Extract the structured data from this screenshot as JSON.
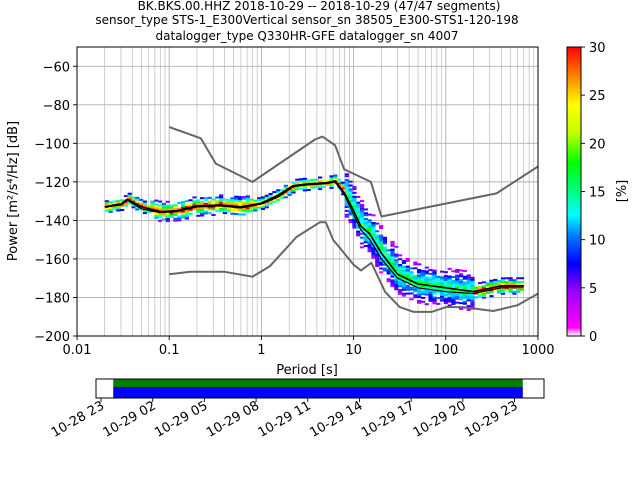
{
  "chart_data": {
    "type": "heatmap",
    "title_lines": [
      "BK.BKS.00.HHZ   2018-10-29 -- 2018-10-29  (47/47 segments)",
      "sensor_type STS-1_E300Vertical sensor_sn 38505_E300-STS1-120-198",
      "datalogger_type Q330HR-GFE datalogger_sn 4007"
    ],
    "xlabel": "Period [s]",
    "ylabel": "Power [m²/s⁴/Hz] [dB]",
    "xscale": "log",
    "xlim": [
      0.01,
      1000
    ],
    "ylim": [
      -200,
      -50
    ],
    "xticks": [
      0.01,
      0.1,
      1,
      10,
      100,
      1000
    ],
    "xtick_labels": [
      "0.01",
      "0.1",
      "1",
      "10",
      "100",
      "1000"
    ],
    "yticks": [
      -60,
      -80,
      -100,
      -120,
      -140,
      -160,
      -180,
      -200
    ],
    "ytick_labels": [
      "−60",
      "−80",
      "−100",
      "−120",
      "−140",
      "−160",
      "−180",
      "−200"
    ],
    "grid": true,
    "colorbar": {
      "label": "[%]",
      "range": [
        0,
        30
      ],
      "ticks": [
        0,
        5,
        10,
        15,
        20,
        25,
        30
      ],
      "tick_labels": [
        "0",
        "5",
        "10",
        "15",
        "20",
        "25",
        "30"
      ]
    },
    "series": [
      {
        "name": "high noise model",
        "color": "#666666",
        "x": [
          0.1,
          0.22,
          0.32,
          0.8,
          3.8,
          4.6,
          6.3,
          7.9,
          15.4,
          20,
          354.8,
          1000
        ],
        "y": [
          -91.5,
          -97.4,
          -110.5,
          -120,
          -98,
          -96.5,
          -101,
          -113.5,
          -120,
          -138,
          -126,
          -112
        ]
      },
      {
        "name": "low noise model",
        "color": "#666666",
        "x": [
          0.1,
          0.17,
          0.4,
          0.8,
          1.24,
          2.4,
          4.3,
          5,
          6,
          10,
          12,
          15.6,
          21.9,
          31.6,
          45,
          70,
          101,
          154,
          328,
          600,
          1000
        ],
        "y": [
          -168,
          -166.7,
          -166.7,
          -169.2,
          -163.7,
          -148.6,
          -141,
          -141,
          -150,
          -163,
          -166,
          -162,
          -177,
          -185,
          -187.5,
          -187.5,
          -185,
          -185,
          -187,
          -184,
          -178
        ]
      },
      {
        "name": "mean PSD",
        "color": "#000000",
        "x": [
          0.02,
          0.025,
          0.03,
          0.035,
          0.05,
          0.08,
          0.12,
          0.2,
          0.35,
          0.6,
          1,
          1.5,
          2.2,
          3.3,
          5,
          6.3,
          8,
          10,
          12,
          15,
          20,
          30,
          50,
          100,
          200,
          400,
          700
        ],
        "y": [
          -133,
          -132,
          -131.5,
          -129,
          -133,
          -135.5,
          -135,
          -132.5,
          -132,
          -133,
          -131,
          -127,
          -122,
          -121,
          -120.5,
          -119.5,
          -126,
          -135,
          -143,
          -147,
          -157,
          -168,
          -173,
          -175,
          -177,
          -174,
          -174
        ]
      },
      {
        "name": "mode PSD",
        "color": "#000000",
        "x": [
          0.02,
          0.025,
          0.03,
          0.035,
          0.05,
          0.08,
          0.12,
          0.2,
          0.35,
          0.6,
          1,
          1.5,
          2.2,
          3.3,
          5,
          6.3,
          8,
          10,
          12,
          15,
          20,
          30,
          50,
          100,
          200,
          400,
          700
        ],
        "y": [
          -133,
          -132.5,
          -132,
          -129.5,
          -134,
          -136,
          -135.5,
          -133,
          -132.5,
          -133.5,
          -131.5,
          -128,
          -122.5,
          -121.5,
          -121,
          -120,
          -127,
          -137,
          -145,
          -150,
          -160,
          -170,
          -175,
          -177,
          -178,
          -175,
          -175
        ]
      }
    ],
    "timeline": {
      "tick_labels": [
        "10-28 23",
        "10-29 02",
        "10-29 05",
        "10-29 08",
        "10-29 11",
        "10-29 14",
        "10-29 17",
        "10-29 20",
        "10-29 23"
      ],
      "coverage_color": "#008000",
      "segments_color": "#0000ff",
      "coverage_start_hour": 0.0,
      "coverage_end_hour": 24.0,
      "axis_start_hour": -1.0,
      "axis_end_hour": 25.0
    },
    "colors": {
      "grid": "#b0b0b0",
      "model_line": "#666666",
      "mean_line": "#000000"
    }
  }
}
